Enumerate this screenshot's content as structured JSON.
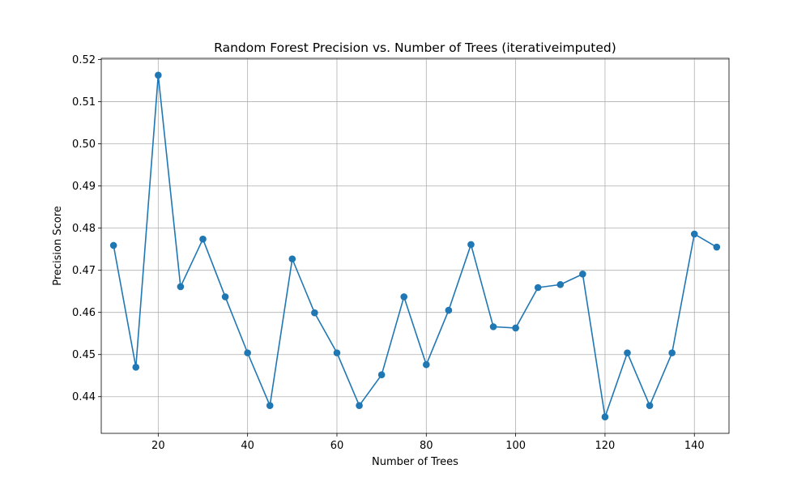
{
  "chart_data": {
    "type": "line",
    "title": "Random Forest Precision vs. Number of Trees (iterativeimputed)",
    "xlabel": "Number of Trees",
    "ylabel": "Precision Score",
    "xlim": [
      7.25,
      147.75
    ],
    "ylim": [
      0.4313,
      0.5203
    ],
    "xticks": [
      20,
      40,
      60,
      80,
      100,
      120,
      140
    ],
    "yticks": [
      0.44,
      0.45,
      0.46,
      0.47,
      0.48,
      0.49,
      0.5,
      0.51,
      0.52
    ],
    "grid": true,
    "series": [
      {
        "color": "#1f77b4",
        "marker": "circle",
        "x": [
          10,
          15,
          20,
          25,
          30,
          35,
          40,
          45,
          50,
          55,
          60,
          65,
          70,
          75,
          80,
          85,
          90,
          95,
          100,
          105,
          110,
          115,
          120,
          125,
          130,
          135,
          140,
          145
        ],
        "y": [
          0.4759,
          0.447,
          0.5163,
          0.4661,
          0.4774,
          0.4637,
          0.4504,
          0.4379,
          0.4727,
          0.4599,
          0.4504,
          0.4379,
          0.4452,
          0.4637,
          0.4476,
          0.4605,
          0.4761,
          0.4566,
          0.4563,
          0.4659,
          0.4666,
          0.4691,
          0.4352,
          0.4504,
          0.4379,
          0.4504,
          0.4786,
          0.4755
        ]
      }
    ]
  }
}
